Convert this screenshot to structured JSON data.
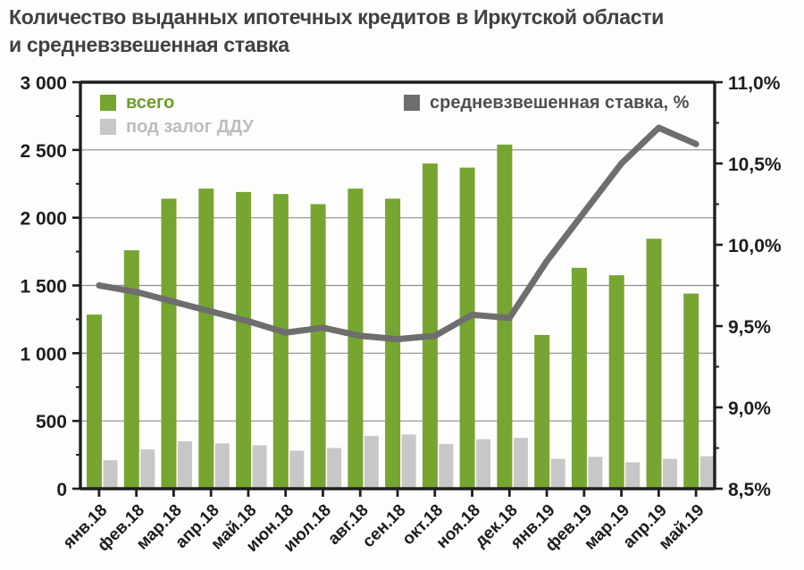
{
  "title": {
    "line1": "Количество выданных ипотечных кредитов в Иркутской области",
    "line2": "и средневзвешенная ставка"
  },
  "legend": {
    "total": "всего",
    "ddu": "под залог ДДУ",
    "rate": "средневзвешенная ставка, %"
  },
  "colors": {
    "total": "#76a532",
    "ddu": "#c7c7c7",
    "rate": "#6e6e6e",
    "title": "#414042",
    "axis_text": "#1d1d1b",
    "grid": "#8f8f8f",
    "spine": "#1f1f1f",
    "legend_total_text": "#6f9c2d",
    "legend_ddu_text": "#bdbdbd",
    "legend_rate_text": "#4f4f51"
  },
  "chart_data": {
    "type": "bar",
    "subtype": "bar+line combo, dual axis",
    "categories": [
      "янв.18",
      "фев.18",
      "мар.18",
      "апр.18",
      "май.18",
      "июн.18",
      "июл.18",
      "авг.18",
      "сен.18",
      "окт.18",
      "ноя.18",
      "дек.18",
      "янв.19",
      "фев.19",
      "мар.19",
      "апр.19",
      "май.19"
    ],
    "series": [
      {
        "name": "всего",
        "type": "bar",
        "axis": "left",
        "color_key": "total",
        "values": [
          1285,
          1760,
          2140,
          2215,
          2190,
          2175,
          2100,
          2215,
          2140,
          2400,
          2370,
          2540,
          1135,
          1630,
          1575,
          1845,
          1440
        ]
      },
      {
        "name": "под залог ДДУ",
        "type": "bar",
        "axis": "left",
        "color_key": "ddu",
        "values": [
          210,
          290,
          350,
          335,
          320,
          280,
          300,
          390,
          400,
          330,
          365,
          375,
          220,
          235,
          195,
          220,
          240
        ]
      },
      {
        "name": "средневзвешенная ставка, %",
        "type": "line",
        "axis": "right",
        "color_key": "rate",
        "values": [
          9.75,
          9.71,
          9.65,
          9.59,
          9.53,
          9.46,
          9.49,
          9.44,
          9.42,
          9.44,
          9.57,
          9.55,
          9.9,
          10.2,
          10.5,
          10.72,
          10.62
        ]
      }
    ],
    "left_axis": {
      "min": 0,
      "max": 3000,
      "major_step": 500,
      "minor_step": 250,
      "tick_labels": [
        "0",
        "500",
        "1 000",
        "1 500",
        "2 000",
        "2 500",
        "3 000"
      ]
    },
    "right_axis": {
      "min": 8.5,
      "max": 11.0,
      "major_step": 0.5,
      "minor_step": 0.25,
      "tick_labels": [
        "8,5%",
        "9,0%",
        "9,5%",
        "10,0%",
        "10,5%",
        "11,0%"
      ]
    },
    "grid": "horizontal-major-on",
    "legend_position": "inside-top"
  }
}
